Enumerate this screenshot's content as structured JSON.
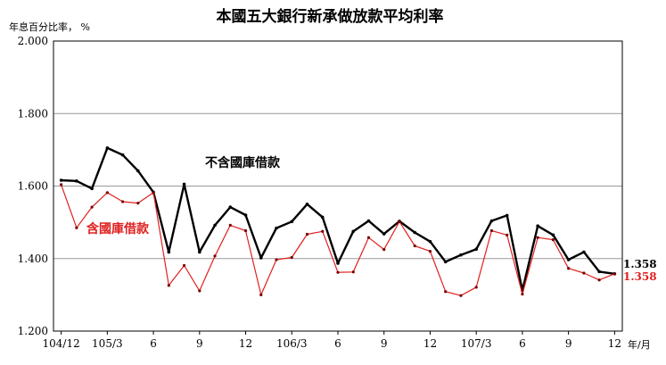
{
  "chart_data": {
    "type": "line",
    "title": "本國五大銀行新承做放款平均利率",
    "ylabel": "年息百分比率， %",
    "xlabel_unit": "年/月",
    "ylim": [
      1.2,
      2.0
    ],
    "yticks": [
      "1.200",
      "1.400",
      "1.600",
      "1.800",
      "2.000"
    ],
    "ytick_values": [
      1.2,
      1.4,
      1.6,
      1.8,
      2.0
    ],
    "grid": true,
    "x_labels": [
      {
        "index": 0,
        "label": "104/12"
      },
      {
        "index": 3,
        "label": "105/3"
      },
      {
        "index": 6,
        "label": "6"
      },
      {
        "index": 9,
        "label": "9"
      },
      {
        "index": 12,
        "label": "12"
      },
      {
        "index": 15,
        "label": "106/3"
      },
      {
        "index": 18,
        "label": "6"
      },
      {
        "index": 21,
        "label": "9"
      },
      {
        "index": 24,
        "label": "12"
      },
      {
        "index": 27,
        "label": "107/3"
      },
      {
        "index": 30,
        "label": "6"
      },
      {
        "index": 33,
        "label": "9"
      },
      {
        "index": 36,
        "label": "12"
      }
    ],
    "series": [
      {
        "name": "不含國庫借款",
        "color": "#000000",
        "values": [
          1.616,
          1.614,
          1.593,
          1.705,
          1.686,
          1.642,
          1.583,
          1.418,
          1.605,
          1.418,
          1.492,
          1.542,
          1.52,
          1.402,
          1.484,
          1.502,
          1.55,
          1.514,
          1.387,
          1.475,
          1.504,
          1.468,
          1.503,
          1.472,
          1.447,
          1.391,
          1.41,
          1.426,
          1.504,
          1.519,
          1.312,
          1.49,
          1.465,
          1.397,
          1.418,
          1.364,
          1.358
        ]
      },
      {
        "name": "含國庫借款",
        "color": "#e02020",
        "values": [
          1.604,
          1.485,
          1.542,
          1.582,
          1.557,
          1.553,
          1.582,
          1.326,
          1.381,
          1.311,
          1.407,
          1.492,
          1.477,
          1.3,
          1.397,
          1.403,
          1.467,
          1.475,
          1.362,
          1.363,
          1.458,
          1.425,
          1.502,
          1.435,
          1.42,
          1.309,
          1.298,
          1.321,
          1.477,
          1.465,
          1.302,
          1.458,
          1.452,
          1.373,
          1.36,
          1.341,
          1.358
        ]
      }
    ],
    "end_labels": [
      "1.358",
      "1.358"
    ]
  }
}
